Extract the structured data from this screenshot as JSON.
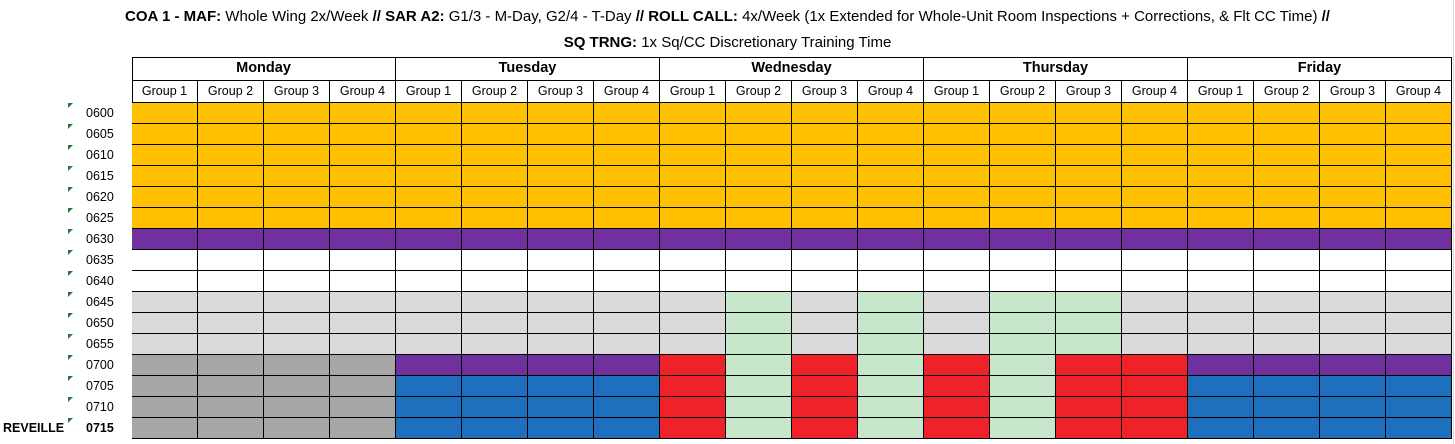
{
  "title": {
    "line1": [
      {
        "text": "COA 1 - MAF:",
        "bold": true
      },
      {
        "text": " Whole Wing 2x/Week ",
        "bold": false
      },
      {
        "text": "// SAR A2:",
        "bold": true
      },
      {
        "text": " G1/3 - M-Day, G2/4 - T-Day ",
        "bold": false
      },
      {
        "text": "// ROLL CALL:",
        "bold": true
      },
      {
        "text": " 4x/Week (1x Extended for Whole-Unit Room Inspections + Corrections, & Flt CC Time) ",
        "bold": false
      },
      {
        "text": "//",
        "bold": true
      }
    ],
    "line2": [
      {
        "text": "SQ TRNG:",
        "bold": true
      },
      {
        "text": " 1x Sq/CC Discretionary Training Time",
        "bold": false
      }
    ]
  },
  "days": [
    "Monday",
    "Tuesday",
    "Wednesday",
    "Thursday",
    "Friday"
  ],
  "groups": [
    "Group 1",
    "Group 2",
    "Group 3",
    "Group 4"
  ],
  "times": [
    "0600",
    "0605",
    "0610",
    "0615",
    "0620",
    "0625",
    "0630",
    "0635",
    "0640",
    "0645",
    "0650",
    "0655",
    "0700",
    "0705",
    "0710",
    "0715"
  ],
  "bold_times": [
    "0715"
  ],
  "row_labels": {
    "0715": "REVEILLE"
  },
  "colors": {
    "Y": "#ffc000",
    "P": "#7030a0",
    "W": "#ffffff",
    "L": "#d9d9d9",
    "G": "#a6a6a6",
    "B": "#1f6fbf",
    "R": "#ee2228",
    "E": "#c6e6c9"
  },
  "grid": [
    "YYYYYYYYYYYYYYYYYYYY",
    "YYYYYYYYYYYYYYYYYYYY",
    "YYYYYYYYYYYYYYYYYYYY",
    "YYYYYYYYYYYYYYYYYYYY",
    "YYYYYYYYYYYYYYYYYYYY",
    "YYYYYYYYYYYYYYYYYYYY",
    "PPPPPPPPPPPPPPPPPPPP",
    "WWWWWWWWWWWWWWWWWWWW",
    "WWWWWWWWWWWWWWWWWWWW",
    "LLLLLLLLLELELEELLLLL",
    "LLLLLLLLLELELEELLLLL",
    "LLLLLLLLLELELEELLLLL",
    "GGGGPPPPRERERERRPPPP",
    "GGGGBBBBRERERERRBBBB",
    "GGGGBBBBRERERERRBBBB",
    "GGGGBBBBRERERERRBBBB"
  ]
}
